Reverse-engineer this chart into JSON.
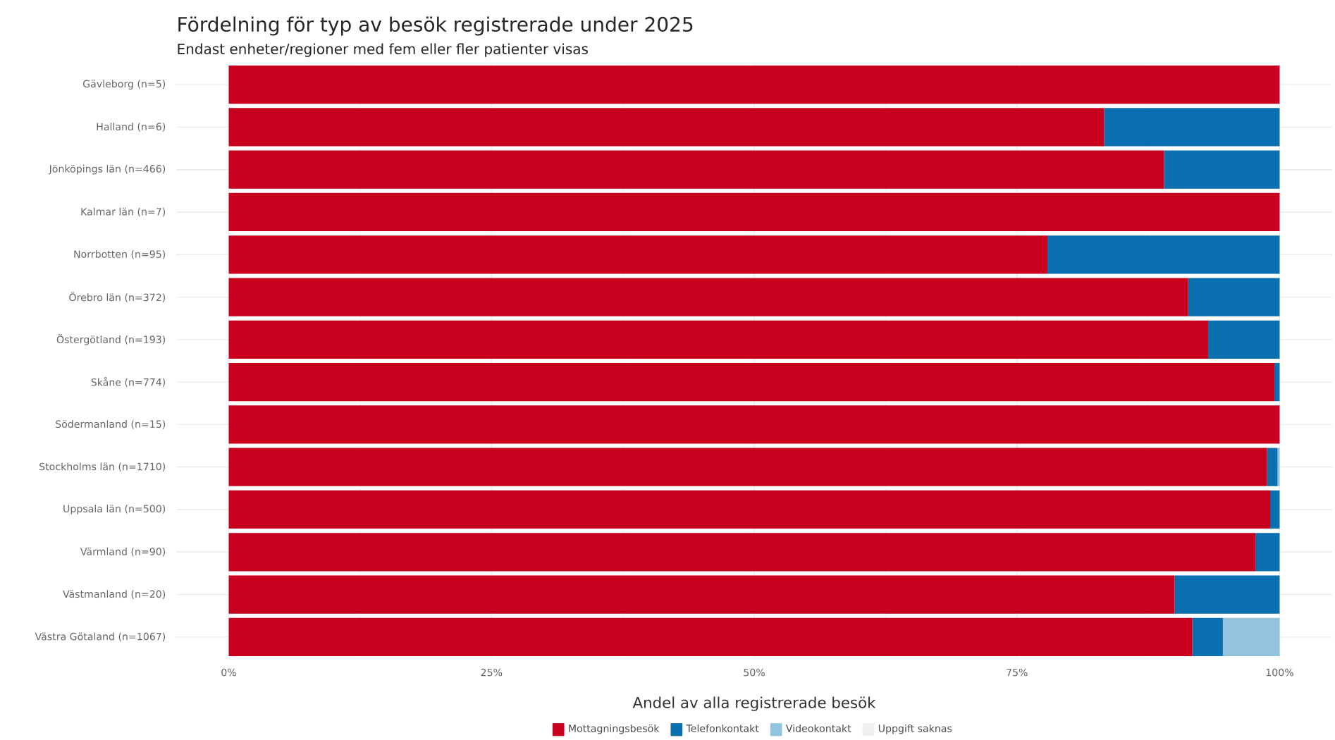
{
  "chart_data": {
    "type": "bar",
    "orientation": "horizontal",
    "stacked": true,
    "title": "Fördelning för typ av besök registrerade under 2025",
    "subtitle": "Endast enheter/regioner med fem eller fler patienter visas",
    "xlabel": "Andel av alla registrerade besök",
    "categories": [
      "Gävleborg (n=5)",
      "Halland (n=6)",
      "Jönköpings län (n=466)",
      "Kalmar län (n=7)",
      "Norrbotten (n=95)",
      "Örebro län (n=372)",
      "Östergötland (n=193)",
      "Skåne (n=774)",
      "Södermanland (n=15)",
      "Stockholms län (n=1710)",
      "Uppsala län (n=500)",
      "Värmland (n=90)",
      "Västmanland (n=20)",
      "Västra Götaland (n=1067)"
    ],
    "series": [
      {
        "name": "Mottagningsbesök",
        "color": "#c8001e",
        "values": [
          100,
          83.3,
          89.0,
          100,
          77.9,
          91.3,
          93.2,
          99.5,
          100,
          98.8,
          99.1,
          97.7,
          90,
          91.7
        ]
      },
      {
        "name": "Telefonkontakt",
        "color": "#0a6faf",
        "values": [
          0,
          16.7,
          11.0,
          0,
          22.1,
          8.7,
          6.8,
          0.5,
          0,
          1.0,
          0.9,
          2.3,
          10,
          2.9
        ]
      },
      {
        "name": "Videokontakt",
        "color": "#93c4de",
        "values": [
          0,
          0,
          0,
          0,
          0,
          0,
          0,
          0,
          0,
          0.2,
          0,
          0,
          0,
          5.4
        ]
      },
      {
        "name": "Uppgift saknas",
        "color": "#f0f0f0",
        "values": [
          0,
          0,
          0,
          0,
          0,
          0,
          0,
          0,
          0,
          0,
          0,
          0,
          0,
          0
        ]
      }
    ],
    "xlim": [
      -5,
      105
    ],
    "xticks": [
      {
        "value": 0,
        "label": "0%"
      },
      {
        "value": 25,
        "label": "25%"
      },
      {
        "value": 50,
        "label": "50%"
      },
      {
        "value": 75,
        "label": "75%"
      },
      {
        "value": 100,
        "label": "100%"
      }
    ],
    "grid": true,
    "legend": "bottom"
  }
}
